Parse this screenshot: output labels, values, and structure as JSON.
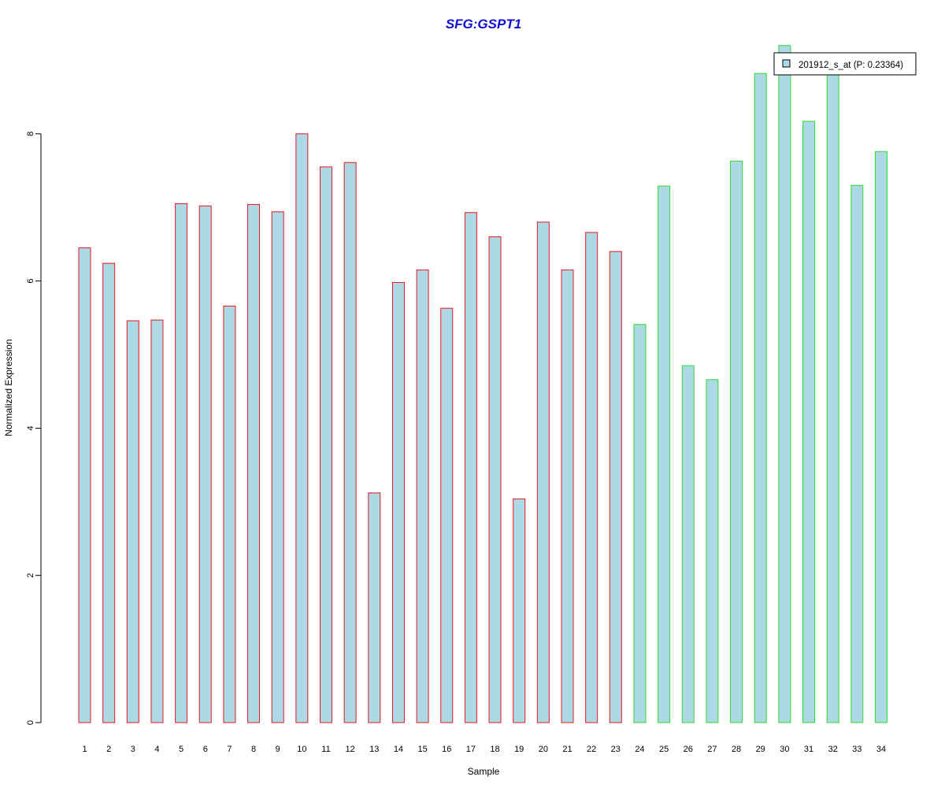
{
  "chart_data": {
    "type": "bar",
    "title": "SFG:GSPT1",
    "xlabel": "Sample",
    "ylabel": "Normalized Expression",
    "categories": [
      "1",
      "2",
      "3",
      "4",
      "5",
      "6",
      "7",
      "8",
      "9",
      "10",
      "11",
      "12",
      "13",
      "14",
      "15",
      "16",
      "17",
      "18",
      "19",
      "20",
      "21",
      "22",
      "23",
      "24",
      "25",
      "26",
      "27",
      "28",
      "29",
      "30",
      "31",
      "32",
      "33",
      "34"
    ],
    "series": [
      {
        "name": "201912_s_at (P: 0.23364)",
        "values": [
          6.45,
          6.24,
          5.46,
          5.47,
          7.05,
          7.02,
          5.66,
          7.04,
          6.94,
          8.0,
          7.55,
          7.61,
          3.12,
          5.98,
          6.15,
          5.63,
          6.93,
          6.6,
          3.04,
          6.8,
          6.15,
          6.66,
          6.4,
          5.41,
          7.29,
          4.85,
          4.66,
          7.63,
          8.82,
          9.2,
          8.17,
          8.88,
          7.3,
          7.76
        ]
      }
    ],
    "groups": [
      {
        "from": 1,
        "to": 23,
        "border_color": "#e8171c"
      },
      {
        "from": 24,
        "to": 34,
        "border_color": "#2ddc2d"
      }
    ],
    "yticks": [
      0,
      2,
      4,
      6,
      8
    ],
    "ylim": [
      0,
      9.2
    ],
    "grid": false,
    "legend_position": "top-right",
    "colors": {
      "bar_fill": "#add8e6",
      "title": "#1010d8",
      "legend_swatch": "#add8e6"
    }
  }
}
